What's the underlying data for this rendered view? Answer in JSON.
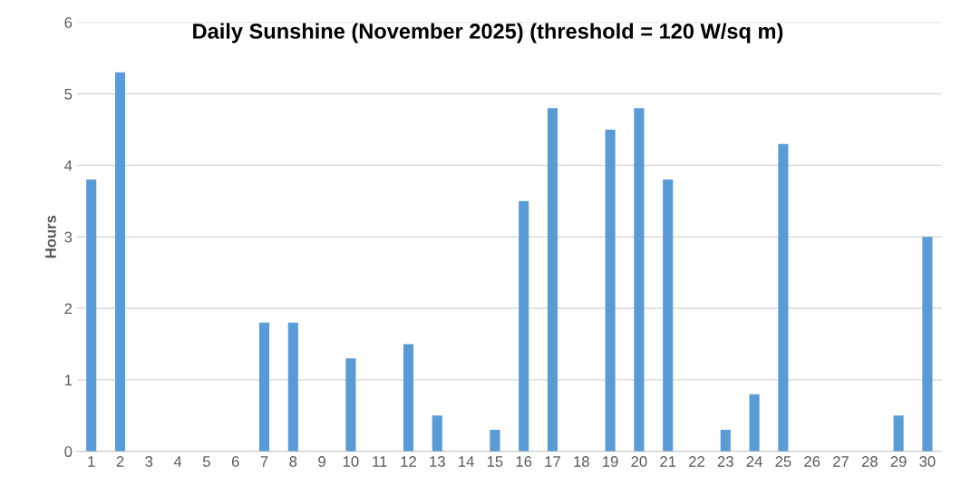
{
  "chart_data": {
    "type": "bar",
    "title": "Daily Sunshine (November 2025) (threshold = 120 W/sq m)",
    "ylabel": "Hours",
    "categories": [
      "1",
      "2",
      "3",
      "4",
      "5",
      "6",
      "7",
      "8",
      "9",
      "10",
      "11",
      "12",
      "13",
      "14",
      "15",
      "16",
      "17",
      "18",
      "19",
      "20",
      "21",
      "22",
      "23",
      "24",
      "25",
      "26",
      "27",
      "28",
      "29",
      "30"
    ],
    "values": [
      3.8,
      5.3,
      0,
      0,
      0,
      0,
      1.8,
      1.8,
      0,
      1.3,
      0,
      1.5,
      0.5,
      0,
      0.3,
      3.5,
      4.8,
      0,
      4.5,
      4.8,
      3.8,
      0,
      0.3,
      0.8,
      4.3,
      0,
      0,
      0,
      0.5,
      3.0
    ],
    "color": "#5b9bd5",
    "ylim": [
      0,
      6
    ],
    "yticks": [
      0,
      1,
      2,
      3,
      4,
      5,
      6
    ],
    "grid": "y",
    "legend": false
  }
}
